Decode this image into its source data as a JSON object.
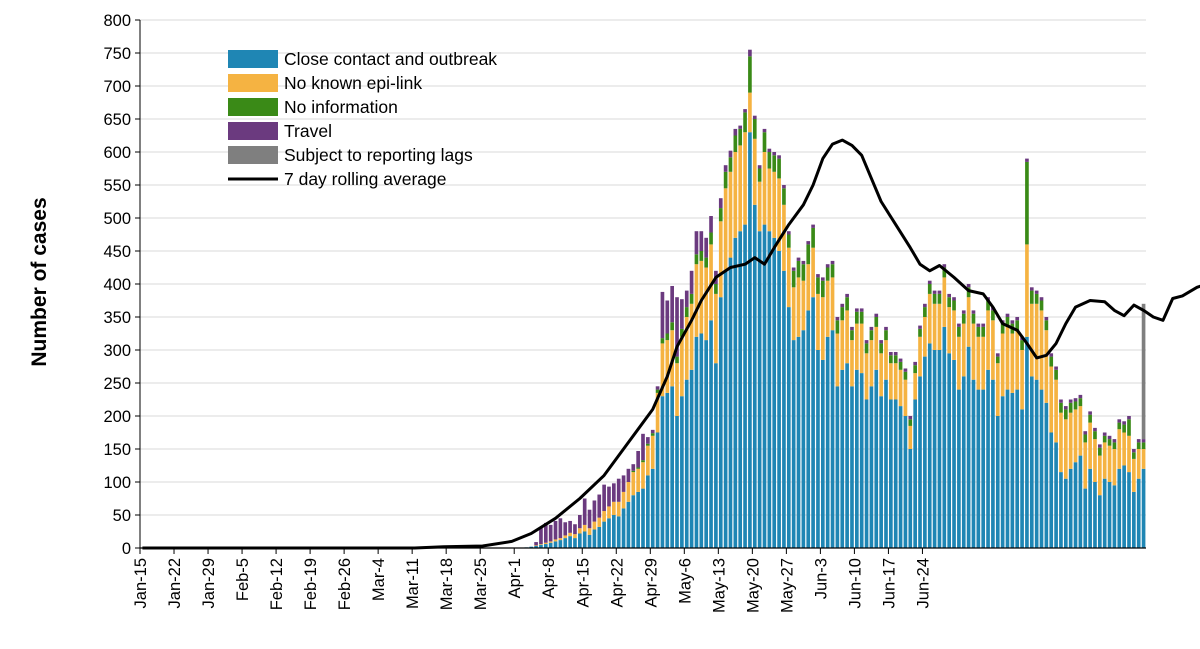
{
  "chart_data": {
    "type": "bar",
    "stacked": true,
    "ylabel": "Number of cases",
    "xlabel": "",
    "ylim": [
      0,
      800
    ],
    "yticks": [
      0,
      50,
      100,
      150,
      200,
      250,
      300,
      350,
      400,
      450,
      500,
      550,
      600,
      650,
      700,
      750,
      800
    ],
    "grid": true,
    "legend_position": "top-left",
    "date_ticks": [
      "Jan-15",
      "Jan-22",
      "Jan-29",
      "Feb-5",
      "Feb-12",
      "Feb-19",
      "Feb-26",
      "Mar-4",
      "Mar-11",
      "Mar-18",
      "Mar-25",
      "Apr-1",
      "Apr-8",
      "Apr-15",
      "Apr-22",
      "Apr-29",
      "May-6",
      "May-13",
      "May-20",
      "May-27",
      "Jun-3",
      "Jun-10",
      "Jun-17",
      "Jun-24"
    ],
    "start_date": "Jan-15",
    "series": [
      {
        "name": "Close contact and outbreak",
        "color": "#1f86b4",
        "values": [
          0,
          0,
          0,
          0,
          0,
          0,
          0,
          0,
          0,
          0,
          0,
          0,
          0,
          0,
          0,
          0,
          0,
          0,
          0,
          0,
          0,
          0,
          0,
          0,
          0,
          0,
          0,
          0,
          0,
          0,
          0,
          0,
          0,
          0,
          0,
          0,
          0,
          0,
          0,
          0,
          0,
          0,
          0,
          0,
          0,
          0,
          0,
          0,
          0,
          0,
          0,
          0,
          0,
          0,
          0,
          0,
          0,
          0,
          0,
          0,
          0,
          0,
          0,
          0,
          0,
          0,
          0,
          0,
          0,
          0,
          0,
          0,
          0,
          0,
          0,
          0,
          0,
          0,
          0,
          1,
          2,
          3,
          5,
          6,
          8,
          10,
          12,
          15,
          18,
          15,
          22,
          25,
          20,
          28,
          32,
          40,
          45,
          50,
          48,
          60,
          70,
          80,
          85,
          90,
          110,
          120,
          175,
          230,
          235,
          245,
          200,
          230,
          255,
          270,
          320,
          325,
          315,
          345,
          280,
          380,
          420,
          440,
          470,
          480,
          490,
          630,
          520,
          480,
          490,
          480,
          470,
          450,
          420,
          365,
          315,
          320,
          330,
          360,
          380,
          300,
          285,
          320,
          330,
          245,
          270,
          280,
          245,
          270,
          265,
          225,
          245,
          270,
          230,
          255,
          225,
          225,
          215,
          200,
          150,
          225,
          260,
          290,
          310,
          300,
          300,
          335,
          295,
          285,
          240,
          260,
          305,
          255,
          240,
          240,
          270,
          255,
          200,
          230,
          240,
          235,
          240,
          210,
          320,
          260,
          255,
          240,
          220,
          175,
          160,
          115,
          105,
          120,
          130,
          140,
          90,
          120,
          100,
          80,
          105,
          100,
          95,
          120,
          125,
          115,
          85,
          105,
          120
        ]
      },
      {
        "name": "No known epi-link",
        "color": "#f5b342",
        "values": [
          0,
          0,
          0,
          0,
          0,
          0,
          0,
          0,
          0,
          0,
          0,
          0,
          0,
          0,
          0,
          0,
          0,
          0,
          0,
          0,
          0,
          0,
          0,
          0,
          0,
          0,
          0,
          0,
          0,
          0,
          0,
          0,
          0,
          0,
          0,
          0,
          0,
          0,
          0,
          0,
          0,
          0,
          0,
          0,
          0,
          0,
          0,
          0,
          0,
          0,
          0,
          0,
          0,
          0,
          0,
          0,
          0,
          0,
          0,
          0,
          0,
          0,
          0,
          0,
          0,
          0,
          0,
          0,
          0,
          0,
          0,
          0,
          0,
          0,
          0,
          0,
          0,
          0,
          0,
          0,
          0,
          1,
          1,
          2,
          2,
          3,
          3,
          4,
          5,
          6,
          8,
          10,
          10,
          12,
          14,
          16,
          18,
          20,
          22,
          25,
          30,
          35,
          35,
          40,
          45,
          50,
          60,
          80,
          80,
          85,
          80,
          90,
          95,
          100,
          110,
          110,
          110,
          115,
          105,
          115,
          125,
          130,
          130,
          130,
          140,
          60,
          100,
          75,
          110,
          95,
          100,
          110,
          100,
          90,
          80,
          90,
          75,
          70,
          75,
          85,
          95,
          85,
          80,
          80,
          75,
          80,
          70,
          70,
          75,
          70,
          70,
          65,
          65,
          60,
          55,
          55,
          55,
          55,
          35,
          40,
          60,
          60,
          75,
          70,
          70,
          75,
          70,
          75,
          80,
          80,
          75,
          85,
          80,
          80,
          90,
          90,
          80,
          95,
          95,
          90,
          90,
          90,
          140,
          110,
          115,
          120,
          110,
          100,
          95,
          90,
          90,
          85,
          80,
          75,
          70,
          70,
          65,
          60,
          55,
          55,
          55,
          60,
          50,
          55,
          50,
          45,
          30
        ]
      },
      {
        "name": "No information",
        "color": "#3a8a17",
        "values": [
          0,
          0,
          0,
          0,
          0,
          0,
          0,
          0,
          0,
          0,
          0,
          0,
          0,
          0,
          0,
          0,
          0,
          0,
          0,
          0,
          0,
          0,
          0,
          0,
          0,
          0,
          0,
          0,
          0,
          0,
          0,
          0,
          0,
          0,
          0,
          0,
          0,
          0,
          0,
          0,
          0,
          0,
          0,
          0,
          0,
          0,
          0,
          0,
          0,
          0,
          0,
          0,
          0,
          0,
          0,
          0,
          0,
          0,
          0,
          0,
          0,
          0,
          0,
          0,
          0,
          0,
          0,
          0,
          0,
          0,
          0,
          0,
          0,
          0,
          0,
          0,
          0,
          0,
          0,
          0,
          0,
          0,
          0,
          0,
          0,
          0,
          0,
          0,
          0,
          0,
          0,
          0,
          0,
          0,
          0,
          0,
          0,
          0,
          0,
          0,
          0,
          2,
          2,
          3,
          3,
          4,
          5,
          8,
          10,
          12,
          10,
          12,
          15,
          15,
          15,
          15,
          15,
          18,
          15,
          20,
          25,
          22,
          25,
          25,
          30,
          55,
          30,
          20,
          30,
          25,
          25,
          30,
          25,
          20,
          25,
          25,
          25,
          30,
          30,
          25,
          25,
          20,
          20,
          20,
          20,
          20,
          15,
          18,
          18,
          15,
          15,
          15,
          15,
          15,
          12,
          12,
          12,
          12,
          10,
          12,
          12,
          15,
          15,
          15,
          15,
          15,
          15,
          15,
          15,
          15,
          15,
          15,
          15,
          15,
          15,
          15,
          10,
          15,
          15,
          15,
          15,
          15,
          125,
          20,
          15,
          15,
          15,
          15,
          15,
          15,
          15,
          15,
          12,
          12,
          12,
          12,
          12,
          12,
          10,
          10,
          10,
          10,
          12,
          25,
          10,
          10,
          10
        ]
      },
      {
        "name": "Travel",
        "color": "#6b3a7f",
        "values": [
          0,
          0,
          0,
          0,
          0,
          0,
          0,
          0,
          0,
          0,
          0,
          0,
          0,
          0,
          0,
          0,
          0,
          0,
          0,
          0,
          0,
          0,
          0,
          0,
          0,
          0,
          0,
          0,
          0,
          0,
          0,
          0,
          0,
          0,
          0,
          0,
          0,
          0,
          0,
          0,
          0,
          0,
          0,
          0,
          0,
          0,
          0,
          0,
          0,
          0,
          0,
          0,
          0,
          0,
          0,
          0,
          0,
          0,
          0,
          0,
          0,
          0,
          0,
          0,
          0,
          0,
          0,
          0,
          0,
          0,
          0,
          0,
          0,
          0,
          0,
          0,
          0,
          0,
          0,
          0,
          0,
          5,
          25,
          30,
          25,
          28,
          30,
          20,
          18,
          15,
          20,
          40,
          28,
          32,
          35,
          40,
          30,
          28,
          35,
          25,
          20,
          10,
          25,
          40,
          10,
          5,
          5,
          70,
          50,
          55,
          90,
          45,
          25,
          35,
          35,
          30,
          30,
          25,
          20,
          15,
          10,
          10,
          10,
          5,
          5,
          10,
          5,
          5,
          5,
          5,
          5,
          5,
          5,
          5,
          5,
          5,
          5,
          5,
          5,
          5,
          5,
          5,
          5,
          5,
          5,
          5,
          5,
          5,
          5,
          5,
          5,
          5,
          5,
          5,
          5,
          5,
          5,
          5,
          5,
          5,
          5,
          5,
          5,
          5,
          5,
          5,
          5,
          5,
          5,
          5,
          5,
          5,
          5,
          5,
          5,
          5,
          5,
          5,
          5,
          5,
          5,
          5,
          5,
          5,
          5,
          5,
          5,
          5,
          5,
          5,
          5,
          5,
          5,
          5,
          5,
          5,
          5,
          5,
          5,
          5,
          5,
          5,
          5,
          5,
          5,
          5,
          5
        ]
      },
      {
        "name": "Subject to reporting lags",
        "color": "#7f7f7f",
        "values": [
          0,
          0,
          0,
          0,
          0,
          0,
          0,
          0,
          0,
          0,
          0,
          0,
          0,
          0,
          0,
          0,
          0,
          0,
          0,
          0,
          0,
          0,
          0,
          0,
          0,
          0,
          0,
          0,
          0,
          0,
          0,
          0,
          0,
          0,
          0,
          0,
          0,
          0,
          0,
          0,
          0,
          0,
          0,
          0,
          0,
          0,
          0,
          0,
          0,
          0,
          0,
          0,
          0,
          0,
          0,
          0,
          0,
          0,
          0,
          0,
          0,
          0,
          0,
          0,
          0,
          0,
          0,
          0,
          0,
          0,
          0,
          0,
          0,
          0,
          0,
          0,
          0,
          0,
          0,
          0,
          0,
          0,
          0,
          0,
          0,
          0,
          0,
          0,
          0,
          0,
          0,
          0,
          0,
          0,
          0,
          0,
          0,
          0,
          0,
          0,
          0,
          0,
          0,
          0,
          0,
          0,
          0,
          0,
          0,
          0,
          0,
          0,
          0,
          0,
          0,
          0,
          0,
          0,
          0,
          0,
          0,
          0,
          0,
          0,
          0,
          0,
          0,
          0,
          0,
          0,
          0,
          0,
          0,
          0,
          0,
          0,
          0,
          0,
          0,
          0,
          0,
          0,
          0,
          0,
          0,
          0,
          0,
          0,
          0,
          0,
          0,
          0,
          0,
          0,
          0,
          0,
          0,
          0,
          0,
          0,
          0,
          0,
          0,
          0,
          0,
          0,
          0,
          0,
          0,
          0,
          0,
          0,
          0,
          0,
          0,
          0,
          0,
          0,
          0,
          0,
          0,
          0,
          0,
          0,
          0,
          0,
          0,
          0,
          0,
          0,
          0,
          0,
          0,
          0,
          0,
          0,
          0,
          0,
          0,
          0,
          0,
          0,
          0,
          0,
          0,
          0,
          205,
          150,
          103
        ]
      }
    ],
    "line": {
      "name": "7 day rolling average",
      "color": "#000000",
      "points": [
        [
          0,
          0
        ],
        [
          56,
          0
        ],
        [
          62,
          2
        ],
        [
          70,
          3
        ],
        [
          76,
          10
        ],
        [
          80,
          22
        ],
        [
          85,
          45
        ],
        [
          90,
          75
        ],
        [
          95,
          110
        ],
        [
          100,
          160
        ],
        [
          105,
          210
        ],
        [
          108,
          260
        ],
        [
          110,
          305
        ],
        [
          113,
          345
        ],
        [
          115,
          375
        ],
        [
          118,
          410
        ],
        [
          121,
          425
        ],
        [
          124,
          430
        ],
        [
          126,
          440
        ],
        [
          128,
          430
        ],
        [
          130,
          455
        ],
        [
          133,
          490
        ],
        [
          136,
          520
        ],
        [
          138,
          550
        ],
        [
          140,
          590
        ],
        [
          142,
          612
        ],
        [
          144,
          618
        ],
        [
          146,
          610
        ],
        [
          148,
          595
        ],
        [
          150,
          560
        ],
        [
          152,
          525
        ],
        [
          155,
          490
        ],
        [
          158,
          455
        ],
        [
          160,
          430
        ],
        [
          162,
          420
        ],
        [
          164,
          428
        ],
        [
          167,
          410
        ],
        [
          170,
          390
        ],
        [
          173,
          385
        ],
        [
          175,
          365
        ],
        [
          177,
          340
        ],
        [
          180,
          330
        ],
        [
          182,
          310
        ],
        [
          184,
          288
        ],
        [
          186,
          292
        ],
        [
          188,
          310
        ],
        [
          190,
          340
        ],
        [
          192,
          365
        ],
        [
          195,
          375
        ],
        [
          198,
          373
        ],
        [
          200,
          360
        ],
        [
          202,
          352
        ],
        [
          204,
          368
        ],
        [
          206,
          360
        ],
        [
          208,
          350
        ],
        [
          210,
          345
        ],
        [
          212,
          378
        ],
        [
          214,
          382
        ],
        [
          217,
          395
        ],
        [
          219,
          400
        ],
        [
          220,
          390
        ],
        [
          222,
          345
        ],
        [
          225,
          300
        ],
        [
          228,
          262
        ],
        [
          231,
          230
        ],
        [
          234,
          205
        ],
        [
          236,
          193
        ],
        [
          238,
          192
        ],
        [
          240,
          185
        ],
        [
          242,
          182
        ],
        [
          244,
          178
        ],
        [
          246,
          175
        ]
      ]
    }
  }
}
